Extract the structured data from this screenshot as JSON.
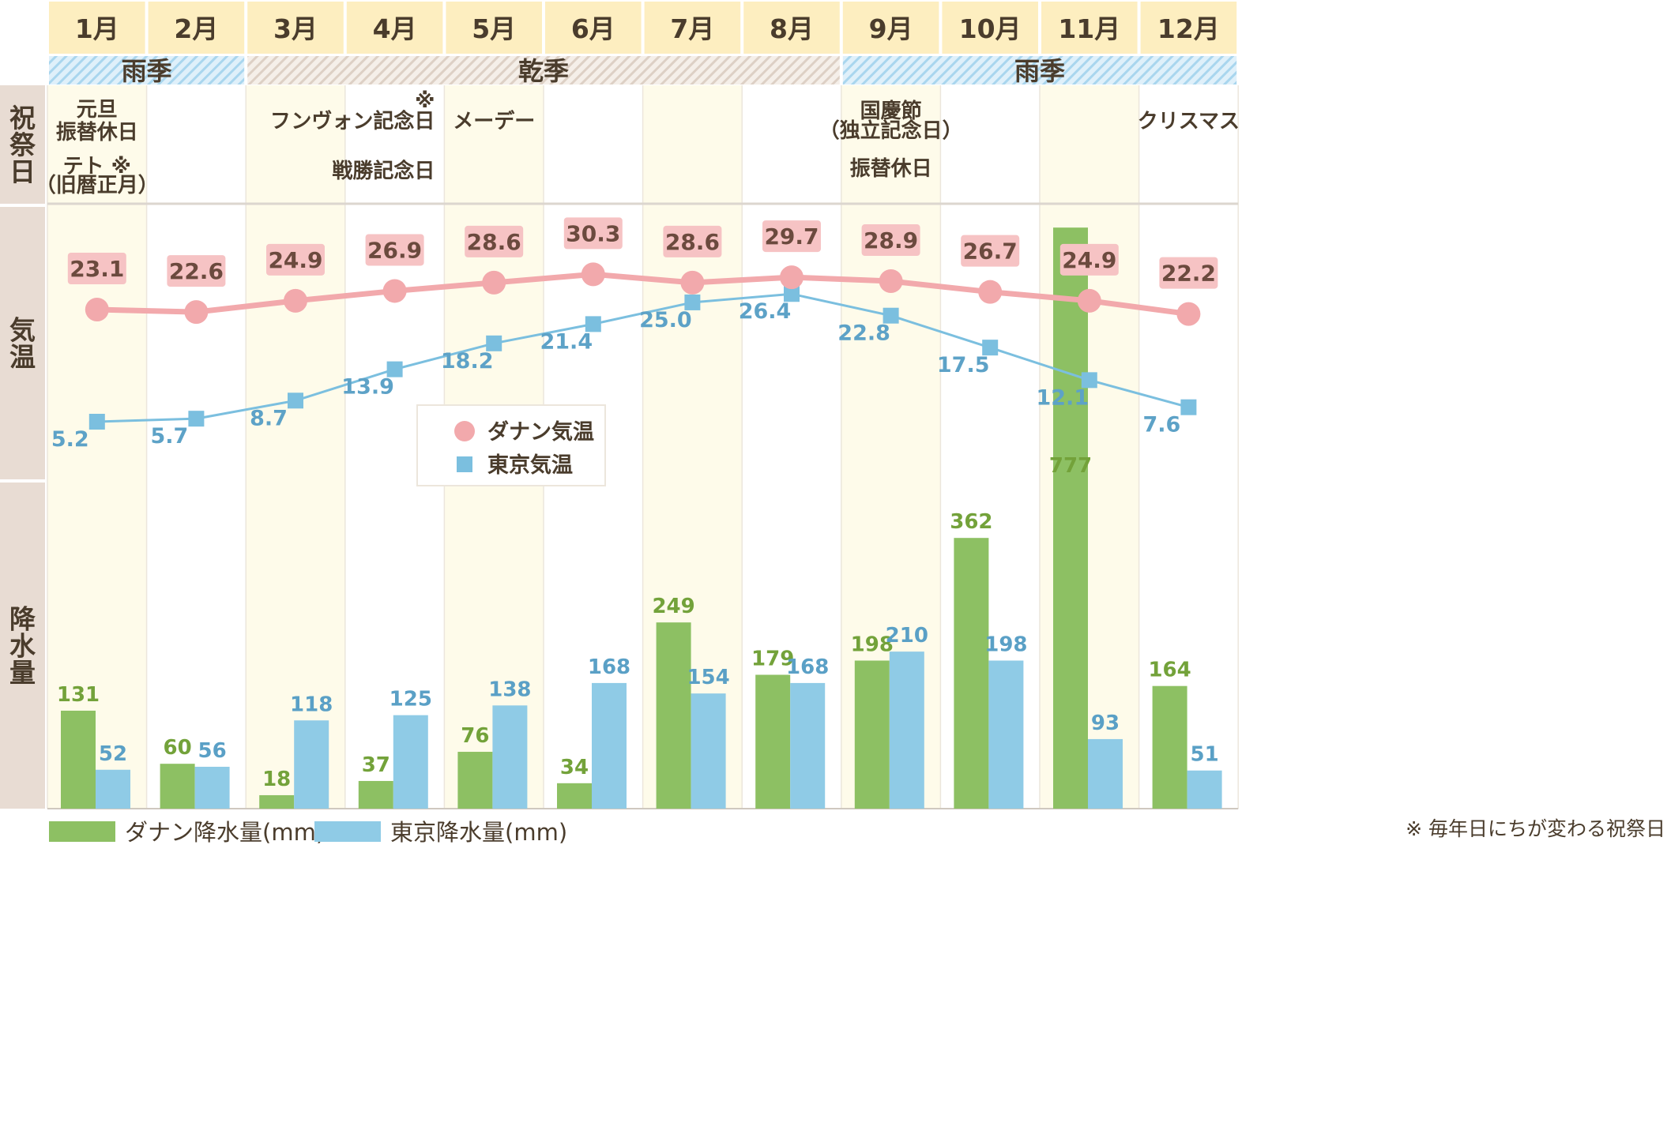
{
  "months": [
    "1月",
    "2月",
    "3月",
    "4月",
    "5月",
    "6月",
    "7月",
    "8月",
    "9月",
    "10月",
    "11月",
    "12月"
  ],
  "seasons": [
    {
      "label": "雨季",
      "type": "rain",
      "start": 0,
      "end": 1
    },
    {
      "label": "乾季",
      "type": "dry",
      "start": 2,
      "end": 7
    },
    {
      "label": "雨季",
      "type": "rain",
      "start": 8,
      "end": 11
    }
  ],
  "row_labels": {
    "holidays": "祝祭日",
    "temperature": "気温",
    "precipitation": "降水量"
  },
  "holidays": [
    {
      "month": 0,
      "lines": [
        "元旦",
        "振替休日",
        "テト ※",
        "（旧暦正月）"
      ]
    },
    {
      "month": 3,
      "lines": [
        "※",
        "フンヴォン記念日",
        "戦勝記念日"
      ]
    },
    {
      "month": 4,
      "lines": [
        "メーデー"
      ]
    },
    {
      "month": 8,
      "lines": [
        "国慶節",
        "（独立記念日）",
        "振替休日"
      ]
    },
    {
      "month": 11,
      "lines": [
        "クリスマス"
      ]
    }
  ],
  "chart_data": {
    "type": "bar+line",
    "categories": [
      "1月",
      "2月",
      "3月",
      "4月",
      "5月",
      "6月",
      "7月",
      "8月",
      "9月",
      "10月",
      "11月",
      "12月"
    ],
    "series": [
      {
        "name": "ダナン気温",
        "kind": "line",
        "values": [
          23.1,
          22.6,
          24.9,
          26.9,
          28.6,
          30.3,
          28.6,
          29.7,
          28.9,
          26.7,
          24.9,
          22.2
        ]
      },
      {
        "name": "東京気温",
        "kind": "line",
        "values": [
          5.2,
          5.7,
          8.7,
          13.9,
          18.2,
          21.4,
          25.0,
          26.4,
          22.8,
          17.5,
          12.1,
          7.6
        ]
      },
      {
        "name": "ダナン降水量(mm)",
        "kind": "bar",
        "values": [
          131,
          60,
          18,
          37,
          76,
          34,
          249,
          179,
          198,
          362,
          777,
          164
        ]
      },
      {
        "name": "東京降水量(mm)",
        "kind": "bar",
        "values": [
          52,
          56,
          118,
          125,
          138,
          168,
          154,
          168,
          210,
          198,
          93,
          51
        ]
      }
    ],
    "temperature_labels": {
      "danang": [
        "23.1",
        "22.6",
        "24.9",
        "26.9",
        "28.6",
        "30.3",
        "28.6",
        "29.7",
        "28.9",
        "26.7",
        "24.9",
        "22.2"
      ],
      "tokyo": [
        "5.2",
        "5.7",
        "8.7",
        "13.9",
        "18.2",
        "21.4",
        "25.0",
        "26.4",
        "22.8",
        "17.5",
        "12.1",
        "7.6"
      ]
    },
    "inner_legend": [
      "ダナン気温",
      "東京気温"
    ],
    "bottom_legend": [
      "ダナン降水量(mm)",
      "東京降水量(mm)"
    ],
    "note": "※ 毎年日にちが変わる祝祭日",
    "colors": {
      "danang_temp": "#f2a9ac",
      "tokyo_temp": "#7bbfdf",
      "danang_rain": "#8dc063",
      "tokyo_rain": "#8fcbe6",
      "header": "#fdeec0",
      "rowlabel": "#e8dcd3"
    }
  }
}
